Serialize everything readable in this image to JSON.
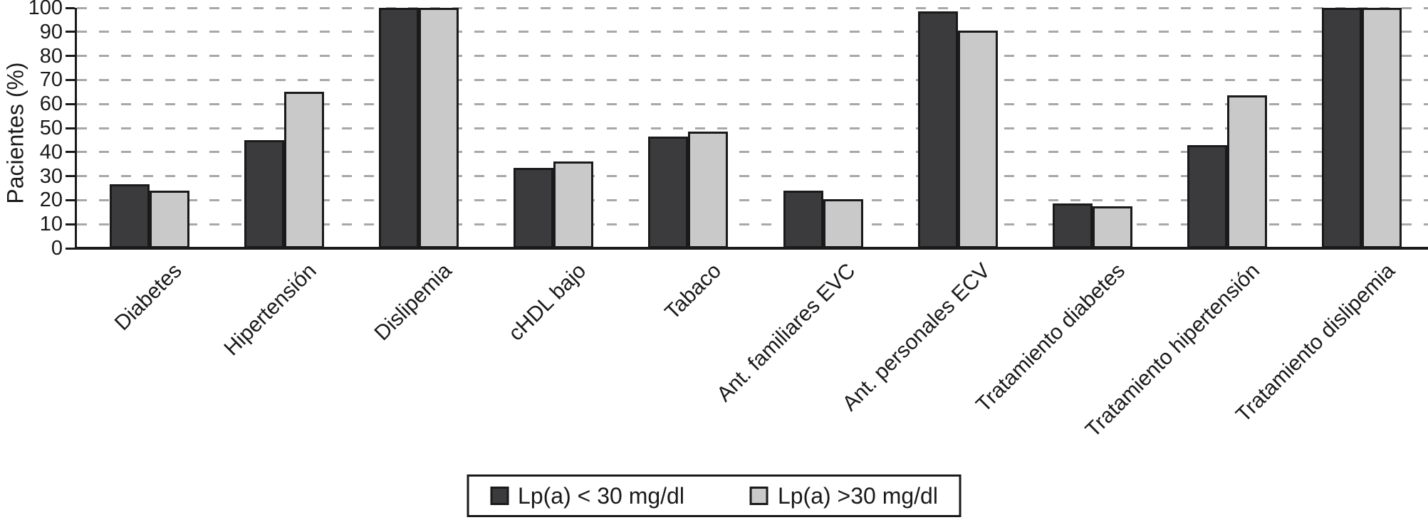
{
  "chart_data": {
    "type": "bar",
    "title": "",
    "ylabel": "Pacientes (%)",
    "xlabel": "",
    "ylim": [
      0,
      100
    ],
    "yticks": [
      0,
      10,
      20,
      30,
      40,
      50,
      60,
      70,
      80,
      90,
      100
    ],
    "grid": "horizontal-dashed",
    "legend_position": "bottom-center",
    "categories": [
      "Diabetes",
      "Hipertensión",
      "Dislipemia",
      "cHDL bajo",
      "Tabaco",
      "Ant. familiares EVC",
      "Ant. personales ECV",
      "Tratamiento diabetes",
      "Tratamiento hipertensión",
      "Tratamiento dislipemia"
    ],
    "series": [
      {
        "name": "Lp(a) < 30 mg/dl",
        "color": "#3b3b3d",
        "values": [
          26.5,
          45,
          100,
          33.5,
          46.5,
          24,
          98.5,
          18.5,
          43,
          100
        ]
      },
      {
        "name": "Lp(a) >30 mg/dl",
        "color": "#c9c9c9",
        "values": [
          24,
          65,
          100,
          36,
          48.5,
          20.5,
          90.5,
          17.5,
          63.5,
          100
        ]
      }
    ]
  },
  "colors": {
    "grid": "#a8a8a8",
    "axis": "#1a1a1a",
    "bar_outline": "#1a1a1a",
    "background": "#ffffff"
  }
}
